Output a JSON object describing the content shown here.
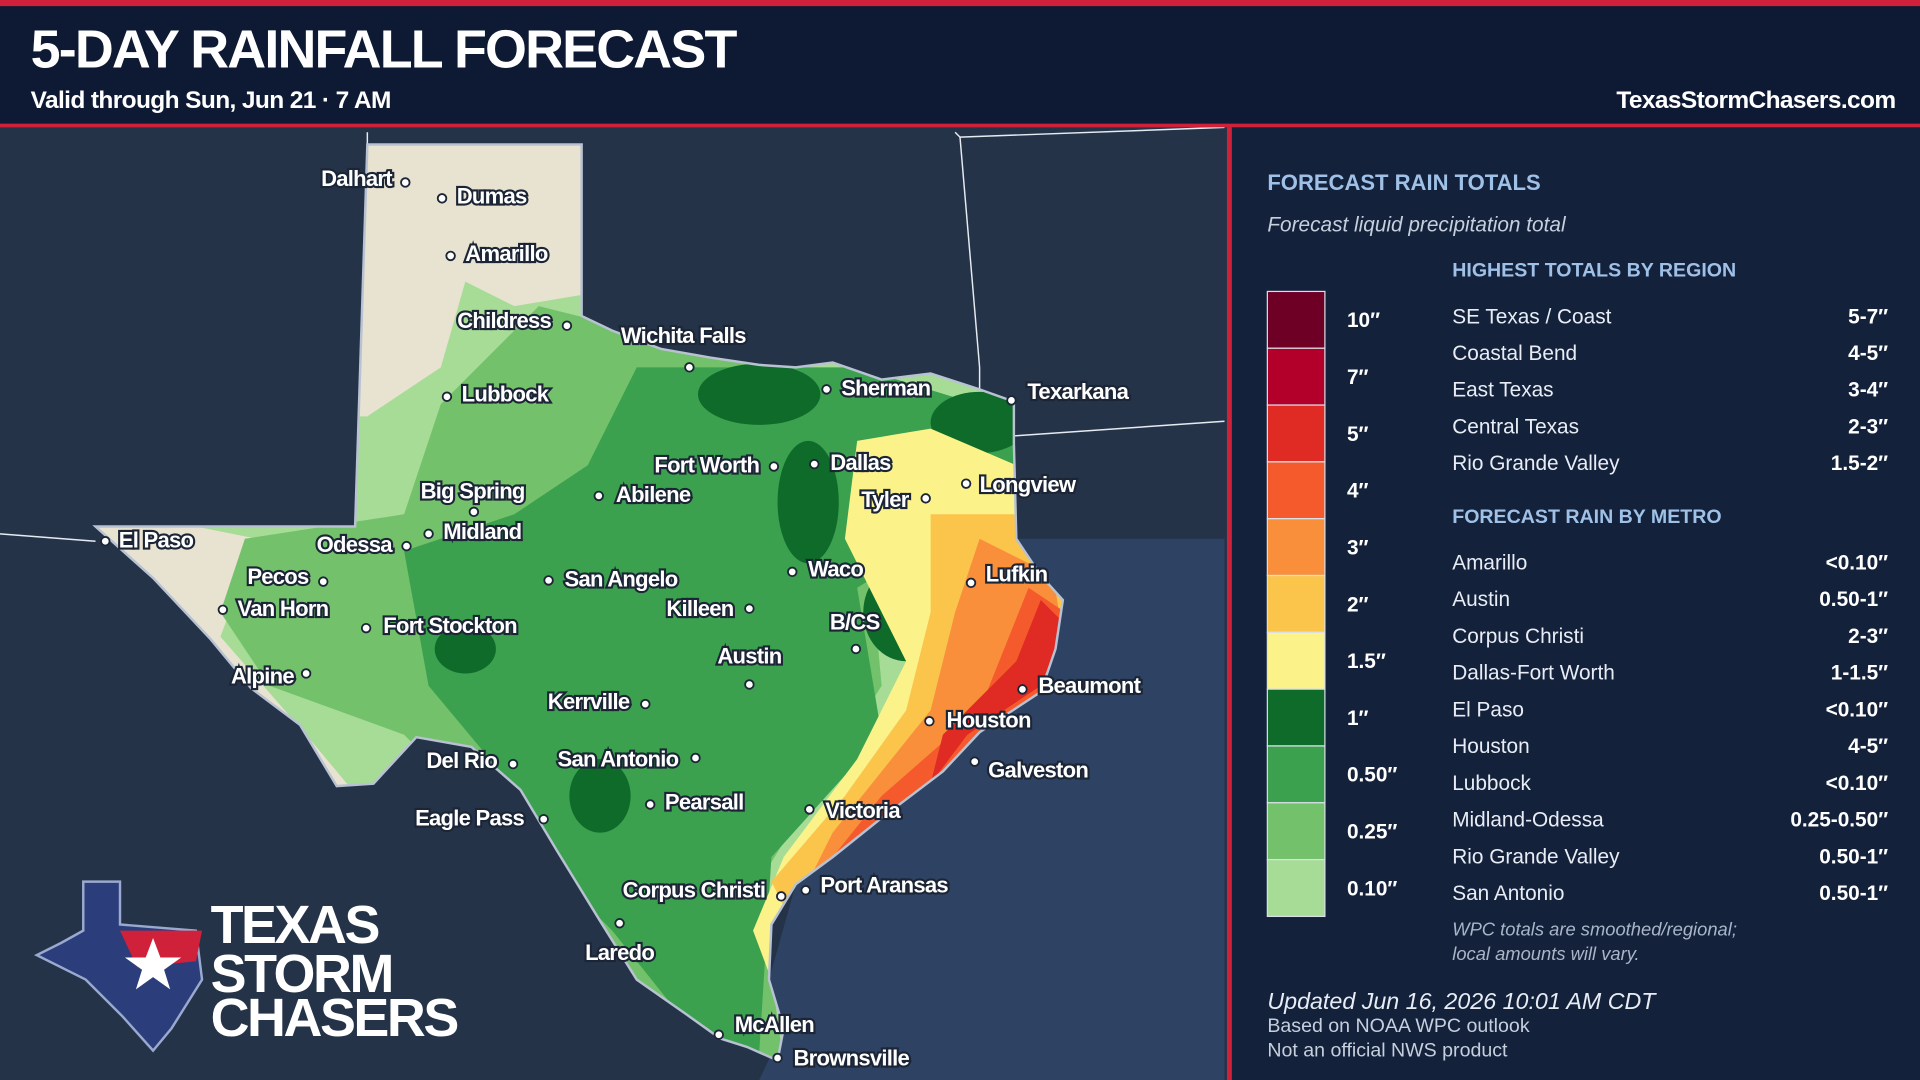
{
  "header": {
    "title": "5-DAY RAINFALL FORECAST",
    "subtitle": "Valid through Sun, Jun 21 · 7 AM",
    "site": "TexasStormChasers.com"
  },
  "map": {
    "cities": [
      "Dalhart",
      "Dumas",
      "Amarillo",
      "Childress",
      "Lubbock",
      "Wichita Falls",
      "Sherman",
      "Texarkana",
      "Fort Worth",
      "Dallas",
      "Abilene",
      "Big Spring",
      "Midland",
      "Odessa",
      "El Paso",
      "Tyler",
      "Longview",
      "Pecos",
      "Van Horn",
      "San Angelo",
      "Waco",
      "Lufkin",
      "Killeen",
      "Fort Stockton",
      "B/CS",
      "Austin",
      "Alpine",
      "Beaumont",
      "Kerrville",
      "Houston",
      "Del Rio",
      "San Antonio",
      "Galveston",
      "Pearsall",
      "Victoria",
      "Eagle Pass",
      "Corpus Christi",
      "Port Aransas",
      "Laredo",
      "McAllen",
      "Brownsville"
    ]
  },
  "logo": {
    "lines": [
      "TEXAS",
      "STORM",
      "CHASERS"
    ]
  },
  "legend": {
    "title": "FORECAST RAIN TOTALS",
    "subtitle": "Forecast liquid precipitation total",
    "scale": [
      {
        "label": "10″",
        "color": "#6e0026"
      },
      {
        "label": "7″",
        "color": "#b3002b"
      },
      {
        "label": "5″",
        "color": "#e02a24"
      },
      {
        "label": "4″",
        "color": "#f55a2c"
      },
      {
        "label": "3″",
        "color": "#f98f3b"
      },
      {
        "label": "2″",
        "color": "#fbc54c"
      },
      {
        "label": "1.5″",
        "color": "#fbf38a"
      },
      {
        "label": "1″",
        "color": "#0f6b2a"
      },
      {
        "label": "0.50″",
        "color": "#3ba14e"
      },
      {
        "label": "0.25″",
        "color": "#73c16b"
      },
      {
        "label": "0.10″",
        "color": "#a7dc97"
      }
    ]
  },
  "regions": {
    "title": "HIGHEST TOTALS BY REGION",
    "rows": [
      [
        "SE Texas / Coast",
        "5-7″"
      ],
      [
        "Coastal Bend",
        "4-5″"
      ],
      [
        "East Texas",
        "3-4″"
      ],
      [
        "Central Texas",
        "2-3″"
      ],
      [
        "Rio Grande Valley",
        "1.5-2″"
      ]
    ]
  },
  "metros": {
    "title": "FORECAST RAIN BY METRO",
    "rows": [
      [
        "Amarillo",
        "<0.10″"
      ],
      [
        "Austin",
        "0.50-1″"
      ],
      [
        "Corpus Christi",
        "2-3″"
      ],
      [
        "Dallas-Fort Worth",
        "1-1.5″"
      ],
      [
        "El Paso",
        "<0.10″"
      ],
      [
        "Houston",
        "4-5″"
      ],
      [
        "Lubbock",
        "<0.10″"
      ],
      [
        "Midland-Odessa",
        "0.25-0.50″"
      ],
      [
        "Rio Grande Valley",
        "0.50-1″"
      ],
      [
        "San Antonio",
        "0.50-1″"
      ]
    ]
  },
  "note": [
    "WPC totals are smoothed/regional;",
    "local amounts will vary."
  ],
  "footer": {
    "updated": "Updated Jun 16, 2026 10:01 AM CDT",
    "source": "Based on NOAA WPC outlook",
    "disclaimer": "Not an official NWS product"
  }
}
